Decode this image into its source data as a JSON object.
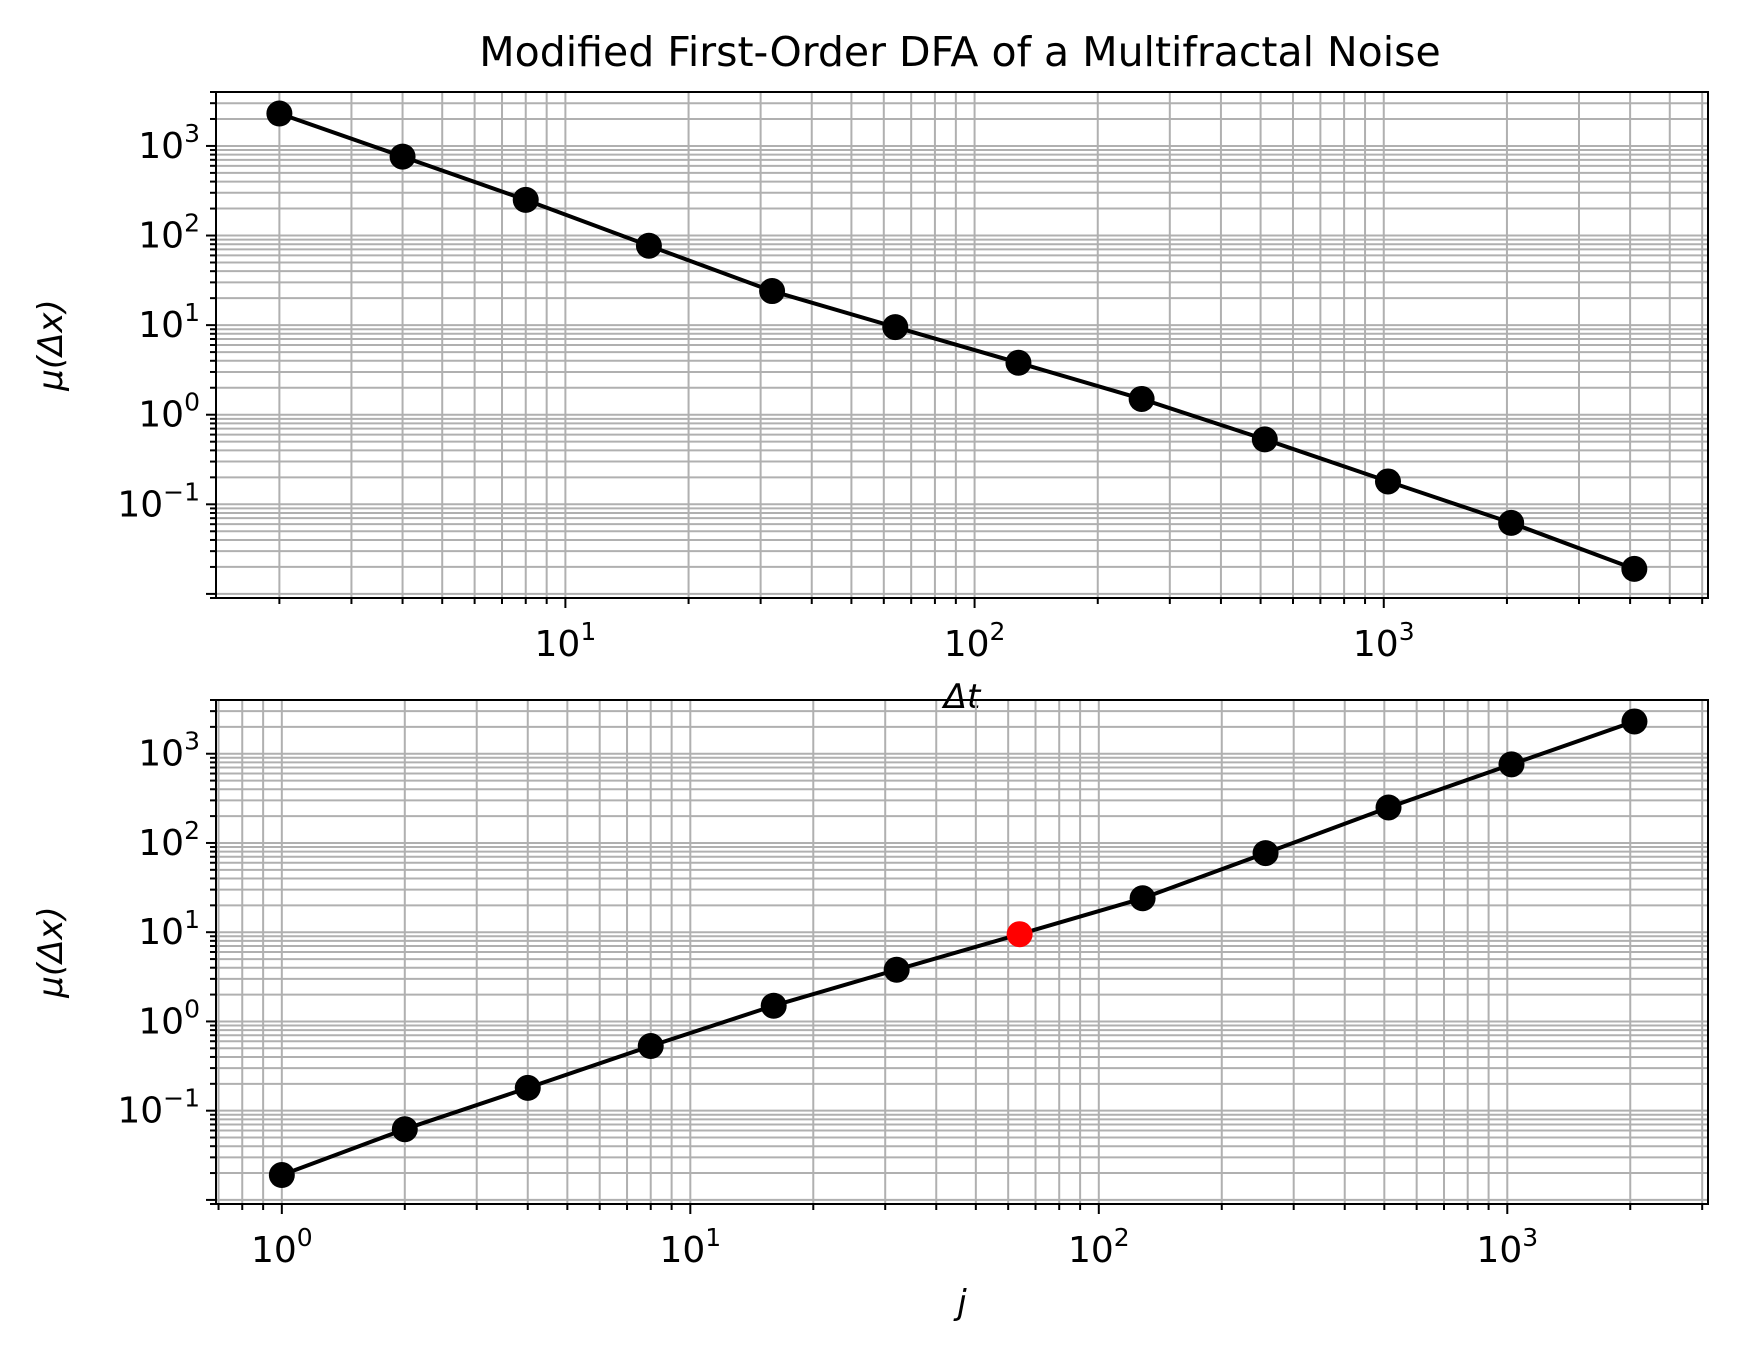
{
  "title": "Modified First-Order DFA of a Multifractal Noise",
  "chart_data": [
    {
      "type": "line",
      "xscale": "log",
      "yscale": "log",
      "xlabel": "Δt",
      "ylabel": "μ(Δx)",
      "xlim": [
        1.4,
        6200
      ],
      "ylim": [
        0.009,
        4000
      ],
      "grid": true,
      "x_ticks": [
        {
          "base": "10",
          "exp": "1",
          "value": 10
        },
        {
          "base": "10",
          "exp": "2",
          "value": 100
        },
        {
          "base": "10",
          "exp": "3",
          "value": 1000
        }
      ],
      "y_ticks": [
        {
          "base": "10",
          "exp": "−1",
          "value": 0.1
        },
        {
          "base": "10",
          "exp": "0",
          "value": 1
        },
        {
          "base": "10",
          "exp": "1",
          "value": 10
        },
        {
          "base": "10",
          "exp": "2",
          "value": 100
        },
        {
          "base": "10",
          "exp": "3",
          "value": 1000
        }
      ],
      "series": [
        {
          "x": [
            2,
            4,
            8,
            16,
            32,
            64,
            128,
            256,
            512,
            1024,
            2048,
            4096
          ],
          "y": [
            2300,
            760,
            250,
            77,
            24,
            9.5,
            3.8,
            1.5,
            0.53,
            0.18,
            0.062,
            0.019
          ],
          "color": "#000000",
          "highlight_index": null
        }
      ]
    },
    {
      "type": "line",
      "xscale": "log",
      "yscale": "log",
      "xlabel": "j",
      "ylabel": "μ(Δx)",
      "xlim": [
        0.69,
        3100
      ],
      "ylim": [
        0.009,
        4000
      ],
      "grid": true,
      "x_ticks": [
        {
          "base": "10",
          "exp": "0",
          "value": 1
        },
        {
          "base": "10",
          "exp": "1",
          "value": 10
        },
        {
          "base": "10",
          "exp": "2",
          "value": 100
        },
        {
          "base": "10",
          "exp": "3",
          "value": 1000
        }
      ],
      "y_ticks": [
        {
          "base": "10",
          "exp": "−1",
          "value": 0.1
        },
        {
          "base": "10",
          "exp": "0",
          "value": 1
        },
        {
          "base": "10",
          "exp": "1",
          "value": 10
        },
        {
          "base": "10",
          "exp": "2",
          "value": 100
        },
        {
          "base": "10",
          "exp": "3",
          "value": 1000
        }
      ],
      "series": [
        {
          "x": [
            1,
            2,
            4,
            8,
            16,
            32,
            64,
            128,
            256,
            512,
            1024,
            2048
          ],
          "y": [
            0.019,
            0.062,
            0.18,
            0.53,
            1.5,
            3.8,
            9.5,
            24,
            77,
            250,
            760,
            2300
          ],
          "color": "#000000",
          "highlight_index": 6,
          "highlight_color": "#ff0000"
        }
      ]
    }
  ]
}
